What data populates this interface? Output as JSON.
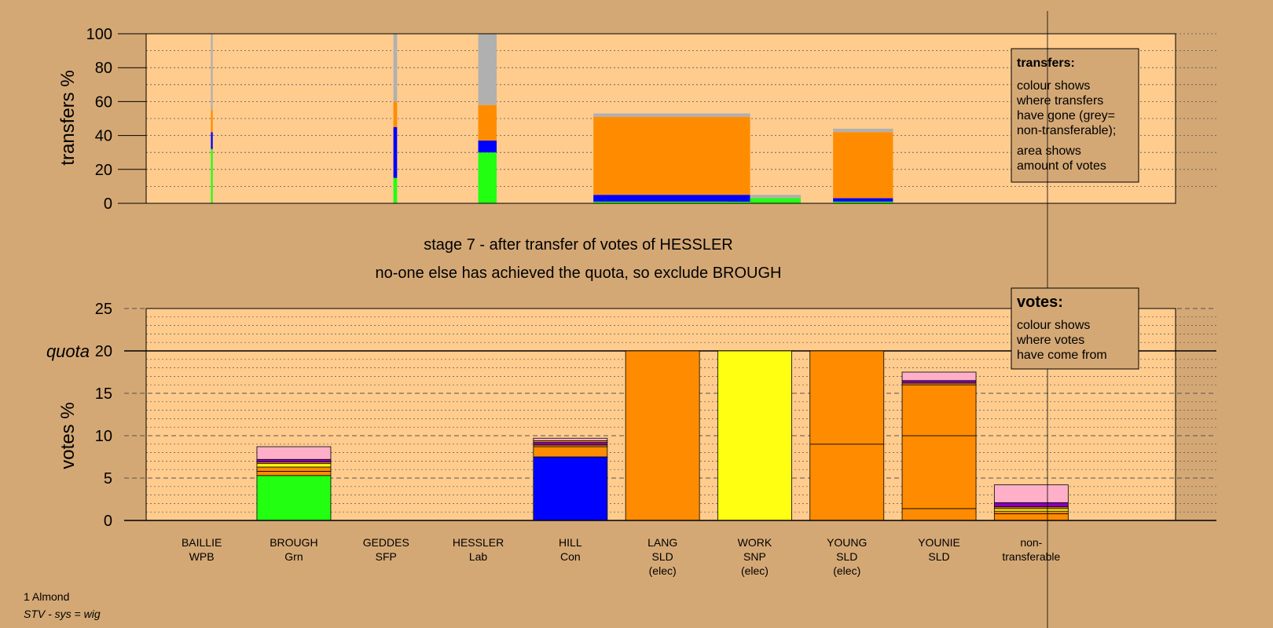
{
  "chart_data": {
    "type": "bar",
    "stage_title": "stage 7 - after transfer of votes of HESSLER",
    "stage_subtitle": "no-one else has achieved the quota, so exclude BROUGH",
    "colors": {
      "green": "#22ff11",
      "blue": "#0000ff",
      "orange": "#ff8c00",
      "yellow": "#ffff11",
      "pink": "#ffb0c8",
      "purple": "#8800bb",
      "grey": "#b0b0b0",
      "plot_bg": "#ffcc8e",
      "page_bg": "#d4a875"
    },
    "candidates": [
      {
        "name": "BAILLIE",
        "party": "WPB",
        "note": ""
      },
      {
        "name": "BROUGH",
        "party": "Grn",
        "note": ""
      },
      {
        "name": "GEDDES",
        "party": "SFP",
        "note": ""
      },
      {
        "name": "HESSLER",
        "party": "Lab",
        "note": ""
      },
      {
        "name": "HILL",
        "party": "Con",
        "note": ""
      },
      {
        "name": "LANG",
        "party": "SLD",
        "note": "(elec)"
      },
      {
        "name": "WORK",
        "party": "SNP",
        "note": "(elec)"
      },
      {
        "name": "YOUNG",
        "party": "SLD",
        "note": "(elec)"
      },
      {
        "name": "YOUNIE",
        "party": "SLD",
        "note": ""
      },
      {
        "name": "non-",
        "party": "transferable",
        "note": ""
      }
    ],
    "transfers": {
      "ylabel": "transfers %",
      "ylim": [
        0,
        100
      ],
      "yticks": [
        0,
        20,
        40,
        60,
        80,
        100
      ],
      "bars": [
        {
          "x0": 0.6,
          "x1": 0.62,
          "segments": [
            [
              "green",
              32
            ],
            [
              "blue",
              10
            ],
            [
              "orange",
              13
            ],
            [
              "grey",
              45
            ]
          ]
        },
        {
          "x0": 2.58,
          "x1": 2.62,
          "segments": [
            [
              "green",
              15
            ],
            [
              "blue",
              30
            ],
            [
              "orange",
              15
            ],
            [
              "grey",
              40
            ]
          ]
        },
        {
          "x0": 3.5,
          "x1": 3.7,
          "segments": [
            [
              "green",
              30
            ],
            [
              "blue",
              7
            ],
            [
              "orange",
              21
            ],
            [
              "grey",
              42
            ]
          ]
        },
        {
          "x0": 4.75,
          "x1": 6.45,
          "segments": [
            [
              "green",
              1
            ],
            [
              "blue",
              4
            ],
            [
              "orange",
              46
            ],
            [
              "grey",
              2
            ]
          ]
        },
        {
          "x0": 6.2,
          "x1": 6.45,
          "segments": [
            [
              "green",
              1
            ],
            [
              "blue",
              2
            ]
          ]
        },
        {
          "x0": 6.45,
          "x1": 7.0,
          "segments": [
            [
              "green",
              3
            ],
            [
              "grey",
              2
            ]
          ]
        },
        {
          "x0": 7.35,
          "x1": 8.0,
          "segments": [
            [
              "green",
              1
            ],
            [
              "blue",
              2
            ],
            [
              "orange",
              39
            ],
            [
              "grey",
              2
            ]
          ]
        }
      ],
      "note_title": "transfers:",
      "note_lines": [
        "colour shows",
        "where transfers",
        "have gone (grey=",
        "non-transferable);",
        "area shows",
        "amount of votes"
      ]
    },
    "votes": {
      "ylabel": "votes %",
      "ylim": [
        0,
        25
      ],
      "yticks": [
        0,
        5,
        10,
        15,
        20,
        25
      ],
      "quota": 20,
      "quota_label": "quota",
      "bars": [
        {
          "index": 0,
          "segments": []
        },
        {
          "index": 1,
          "segments": [
            [
              "green",
              5.3
            ],
            [
              "orange",
              0.5
            ],
            [
              "orange",
              0.5
            ],
            [
              "yellow",
              0.4
            ],
            [
              "orange",
              0.2
            ],
            [
              "purple",
              0.3
            ],
            [
              "pink",
              1.5
            ]
          ]
        },
        {
          "index": 2,
          "segments": []
        },
        {
          "index": 3,
          "segments": []
        },
        {
          "index": 4,
          "segments": [
            [
              "blue",
              7.5
            ],
            [
              "orange",
              1.2
            ],
            [
              "orange",
              0.2
            ],
            [
              "purple",
              0.3
            ],
            [
              "orange",
              0.2
            ],
            [
              "pink",
              0.3
            ]
          ]
        },
        {
          "index": 5,
          "segments": [
            [
              "orange",
              20
            ]
          ]
        },
        {
          "index": 6,
          "segments": [
            [
              "yellow",
              20
            ]
          ]
        },
        {
          "index": 7,
          "segments": [
            [
              "orange",
              9
            ],
            [
              "orange",
              11
            ]
          ]
        },
        {
          "index": 8,
          "segments": [
            [
              "orange",
              1.4
            ],
            [
              "orange",
              8.6
            ],
            [
              "orange",
              6.0
            ],
            [
              "orange",
              0.2
            ],
            [
              "purple",
              0.3
            ],
            [
              "pink",
              1.0
            ]
          ]
        },
        {
          "index": 9,
          "segments": [
            [
              "orange",
              0.8
            ],
            [
              "orange",
              0.3
            ],
            [
              "yellow",
              0.3
            ],
            [
              "orange",
              0.2
            ],
            [
              "purple",
              0.5
            ],
            [
              "pink",
              2.1
            ]
          ]
        }
      ],
      "note_title": "votes:",
      "note_lines": [
        "colour shows",
        "where votes",
        "have come from"
      ]
    },
    "footer": {
      "line1": "1 Almond",
      "line2": "STV - sys = wig"
    }
  }
}
